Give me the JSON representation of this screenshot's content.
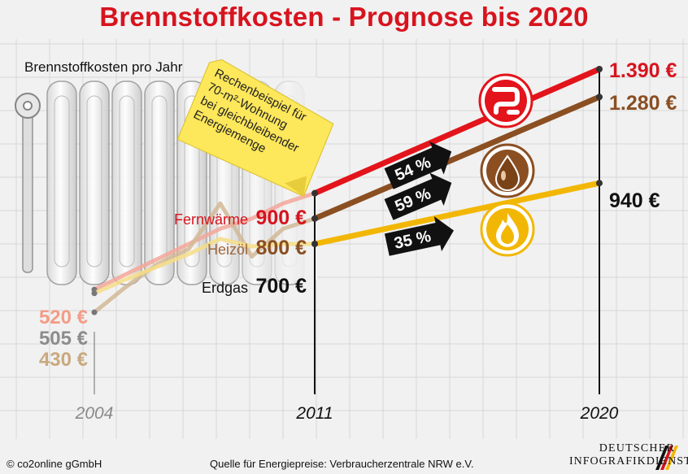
{
  "title": "Brennstoffkosten - Prognose bis 2020",
  "subtitle": "Brennstoffkosten pro Jahr",
  "note": [
    "Rechenbeispiel für",
    "70-m²-Wohnung",
    "bei gleichbleibender",
    "Energiemenge"
  ],
  "footer": {
    "left": "© co2online gGmbH",
    "center": "Quelle für Energiepreise: Verbraucherzentrale NRW e.V.",
    "logo_line1": "DEUTSCHER",
    "logo_line2": "INFOGRAFIKDIENST"
  },
  "chart_data": {
    "type": "line",
    "x": [
      "2004",
      "2011",
      "2020"
    ],
    "ylim": [
      300,
      1450
    ],
    "series": [
      {
        "name": "Fernwärme",
        "color": "#e3141b",
        "icon": "pipe-icon",
        "history": [
          [
            2004,
            520
          ],
          [
            2005,
            580
          ],
          [
            2006,
            640
          ],
          [
            2007,
            700
          ],
          [
            2008,
            760
          ],
          [
            2009,
            800
          ],
          [
            2010,
            860
          ],
          [
            2011,
            900
          ]
        ],
        "values": [
          520,
          900,
          1390
        ],
        "labels": [
          "520 €",
          "900 €",
          "1.390 €"
        ],
        "increase": "54 %"
      },
      {
        "name": "Heizöl",
        "color": "#8b4f22",
        "icon": "oil-drop-icon",
        "history": [
          [
            2004,
            430
          ],
          [
            2005,
            530
          ],
          [
            2006,
            620
          ],
          [
            2007,
            680
          ],
          [
            2008,
            860
          ],
          [
            2009,
            650
          ],
          [
            2010,
            760
          ],
          [
            2011,
            800
          ]
        ],
        "values": [
          430,
          800,
          1280
        ],
        "labels": [
          "430 €",
          "800 €",
          "1.280 €"
        ],
        "increase": "59 %"
      },
      {
        "name": "Erdgas",
        "color": "#f2b705",
        "icon": "gas-flame-icon",
        "history": [
          [
            2004,
            505
          ],
          [
            2005,
            560
          ],
          [
            2006,
            610
          ],
          [
            2007,
            660
          ],
          [
            2008,
            720
          ],
          [
            2009,
            690
          ],
          [
            2010,
            700
          ],
          [
            2011,
            700
          ]
        ],
        "values": [
          505,
          700,
          940
        ],
        "labels": [
          "505 €",
          "700 €",
          "940 €"
        ],
        "increase": "35 %"
      }
    ]
  }
}
